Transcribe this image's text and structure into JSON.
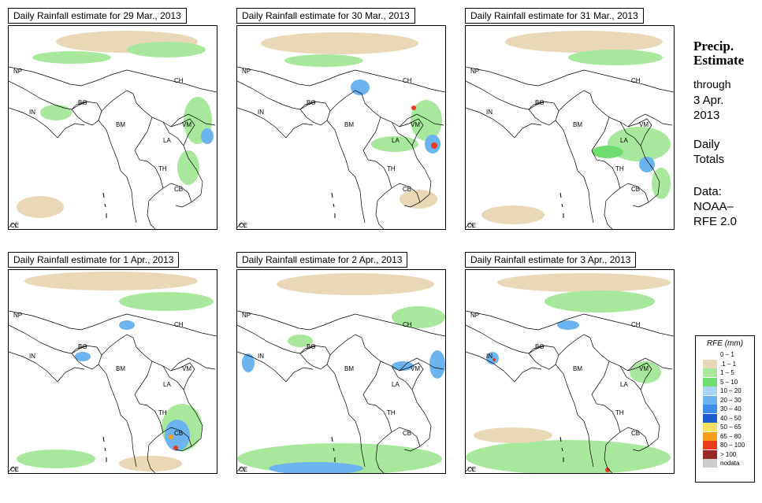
{
  "panels": [
    {
      "title": "Daily Rainfall estimate for  29 Mar., 2013"
    },
    {
      "title": "Daily Rainfall estimate for  30 Mar., 2013"
    },
    {
      "title": "Daily Rainfall estimate for  31 Mar., 2013"
    },
    {
      "title": "Daily Rainfall estimate for  1 Apr., 2013"
    },
    {
      "title": "Daily Rainfall estimate for  2 Apr., 2013"
    },
    {
      "title": "Daily Rainfall estimate for  3 Apr., 2013"
    }
  ],
  "map_labels": {
    "np": "NP",
    "ch": "CH",
    "bg": "BG",
    "in": "IN",
    "bm": "BM",
    "vm": "VM",
    "la": "LA",
    "th": "TH",
    "cb": "CB",
    "ce": "CE"
  },
  "side": {
    "heading_1": "Precip.",
    "heading_2": "Estimate",
    "through": "through",
    "date_1": "3 Apr.",
    "date_2": "2013",
    "daily_1": "Daily",
    "daily_2": "Totals",
    "data_1": "Data:",
    "data_2": "NOAA–",
    "data_3": "RFE 2.0"
  },
  "legend": {
    "title": "RFE (mm)",
    "items": [
      {
        "label": "0 – 1",
        "color": "#ffffff"
      },
      {
        "label": ".1 – 1",
        "color": "#e8d8b8"
      },
      {
        "label": "1 – 5",
        "color": "#a8e89c"
      },
      {
        "label": "5 – 10",
        "color": "#6edc6e"
      },
      {
        "label": "10 – 20",
        "color": "#a8d4f4"
      },
      {
        "label": "20 – 30",
        "color": "#6cb4f0"
      },
      {
        "label": "30 – 40",
        "color": "#3c8ce8"
      },
      {
        "label": "40 – 50",
        "color": "#1c5cd0"
      },
      {
        "label": "50 – 65",
        "color": "#f8e060"
      },
      {
        "label": "65 – 80",
        "color": "#f89c1c"
      },
      {
        "label": "80 – 100",
        "color": "#e83c1c"
      },
      {
        "label": "> 100",
        "color": "#982820"
      },
      {
        "label": "nodata",
        "color": "#cccccc"
      }
    ]
  }
}
